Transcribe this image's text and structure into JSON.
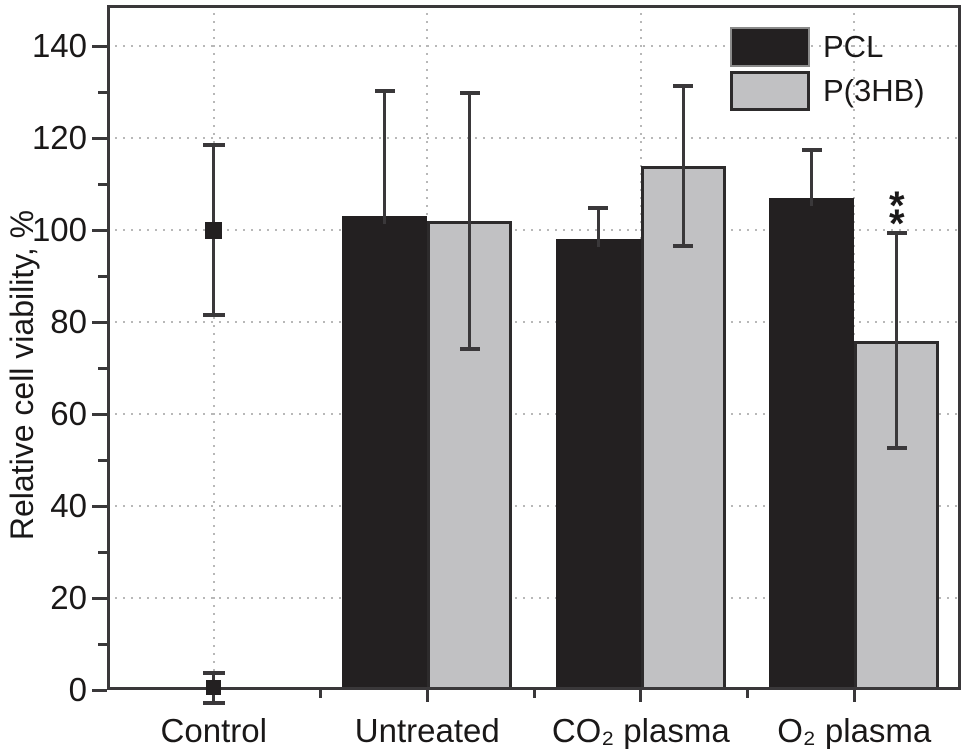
{
  "chart_data": {
    "type": "bar",
    "title": "",
    "ylabel": "Relative cell viability, %",
    "xlabel": "",
    "ylim": [
      0,
      149
    ],
    "yticks": [
      0,
      20,
      40,
      60,
      80,
      100,
      120,
      140
    ],
    "yticks_minor": [
      10,
      30,
      50,
      70,
      90,
      110,
      130
    ],
    "grid": {
      "horizontal": "dotted lines at major y ticks",
      "vertical": "dotted lines at category centers",
      "color": "#b8b8b8"
    },
    "categories": [
      "Control",
      "Untreated",
      "CO₂ plasma",
      "O₂ plasma"
    ],
    "series": [
      {
        "name": "PCL",
        "color": "#232021",
        "values": [
          null,
          103,
          98,
          107
        ],
        "err_up": [
          null,
          27.5,
          7,
          10.5
        ],
        "err_down": [
          null,
          null,
          null,
          null
        ]
      },
      {
        "name": "P(3HB)",
        "color": "#c1c1c3",
        "border_color": "#2d2b2c",
        "values": [
          null,
          102,
          114,
          76
        ],
        "err_up": [
          null,
          28,
          17.5,
          23.5
        ],
        "err_down": [
          null,
          28,
          17.5,
          23.5
        ]
      }
    ],
    "control_points": [
      {
        "category": "Control",
        "marker": "filled-square",
        "size": 17,
        "value": 100,
        "err_up": 18.5,
        "err_down": 18.5
      },
      {
        "category": "Control",
        "marker": "filled-square",
        "size": 15,
        "value": 0.5,
        "err_up": 3.2,
        "err_down": 3.4
      }
    ],
    "annotations": [
      {
        "text": "**",
        "category": "O₂ plasma",
        "series": "P(3HB)",
        "placement": "stacked above upper error bar"
      }
    ],
    "legend": {
      "position": "top-right",
      "entries": [
        "PCL",
        "P(3HB)"
      ]
    },
    "colors": {
      "axis": "#3a383a",
      "text": "#1a1818",
      "background": "#ffffff"
    }
  }
}
